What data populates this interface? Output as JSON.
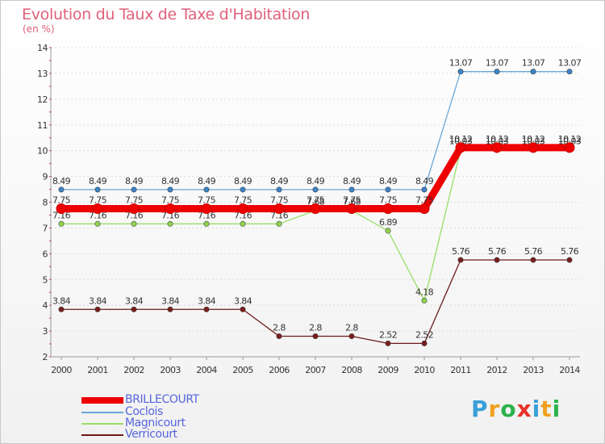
{
  "title": "Evolution du Taux de Taxe d'Habitation",
  "subtitle": "(en %)",
  "logo": {
    "text": "Proxiti",
    "letters": [
      {
        "ch": "P",
        "color": "#3aa0d8"
      },
      {
        "ch": "r",
        "color": "#f0a020"
      },
      {
        "ch": "o",
        "color": "#2bb24a"
      },
      {
        "ch": "x",
        "color": "#e8312a"
      },
      {
        "ch": "i",
        "color": "#3aa0d8"
      },
      {
        "ch": "t",
        "color": "#f0a020"
      },
      {
        "ch": "i",
        "color": "#2bb24a"
      }
    ]
  },
  "chart_data": {
    "type": "line",
    "title": "Evolution du Taux de Taxe d'Habitation",
    "ylabel": "(en %)",
    "xlabel": "",
    "ylim": [
      2,
      14
    ],
    "yticks": [
      "2",
      "3",
      "4",
      "5",
      "6",
      "7",
      "8",
      "9",
      "10",
      "11",
      "12",
      "13",
      "14"
    ],
    "categories": [
      "2000",
      "2001",
      "2002",
      "2003",
      "2004",
      "2005",
      "2006",
      "2007",
      "2008",
      "2009",
      "2010",
      "2011",
      "2012",
      "2013",
      "2014"
    ],
    "legend_position": "bottom-left",
    "series": [
      {
        "name": "Verricourt",
        "color": "#6b1a1a",
        "marker": "#7a1c1c",
        "values": [
          3.84,
          3.84,
          3.84,
          3.84,
          3.84,
          3.84,
          2.8,
          2.8,
          2.8,
          2.52,
          2.52,
          5.76,
          5.76,
          5.76,
          5.76
        ],
        "labels": [
          "3.84",
          "3.84",
          "3.84",
          "3.84",
          "3.84",
          "3.84",
          "2.8",
          "2.8",
          "2.8",
          "2.52",
          "2.52",
          "5.76",
          "5.76",
          "5.76",
          "5.76"
        ]
      },
      {
        "name": "Magnicourt",
        "color": "#99dd66",
        "marker": "#8fd34f",
        "values": [
          7.16,
          7.16,
          7.16,
          7.16,
          7.16,
          7.16,
          7.16,
          7.68,
          7.68,
          6.89,
          4.18,
          10.03,
          10.03,
          10.03,
          10.03
        ],
        "labels": [
          "7.16",
          "7.16",
          "7.16",
          "7.16",
          "7.16",
          "7.16",
          "7.16",
          "7.68",
          "7.68",
          "6.89",
          "4.18",
          "10.03",
          "10.03",
          "10.03",
          "10.03"
        ]
      },
      {
        "name": "Coclois",
        "color": "#6aa6d6",
        "marker": "#3a84c8",
        "values": [
          8.49,
          8.49,
          8.49,
          8.49,
          8.49,
          8.49,
          8.49,
          8.49,
          8.49,
          8.49,
          8.49,
          13.07,
          13.07,
          13.07,
          13.07
        ],
        "labels": [
          "8.49",
          "8.49",
          "8.49",
          "8.49",
          "8.49",
          "8.49",
          "8.49",
          "8.49",
          "8.49",
          "8.49",
          "8.49",
          "13.07",
          "13.07",
          "13.07",
          "13.07"
        ]
      },
      {
        "name": "BRILLECOURT",
        "color": "#ee0000",
        "marker": "#ee0000",
        "values": [
          7.75,
          7.75,
          7.75,
          7.75,
          7.75,
          7.75,
          7.75,
          7.75,
          7.75,
          7.75,
          7.75,
          10.12,
          10.12,
          10.12,
          10.12
        ],
        "labels": [
          "7.75",
          "7.75",
          "7.75",
          "7.75",
          "7.75",
          "7.75",
          "7.75",
          "7.75",
          "7.75",
          "7.75",
          "7.75",
          "10.12",
          "10.12",
          "10.12",
          "10.12"
        ]
      }
    ],
    "legend": [
      "BRILLECOURT",
      "Coclois",
      "Magnicourt",
      "Verricourt"
    ]
  }
}
